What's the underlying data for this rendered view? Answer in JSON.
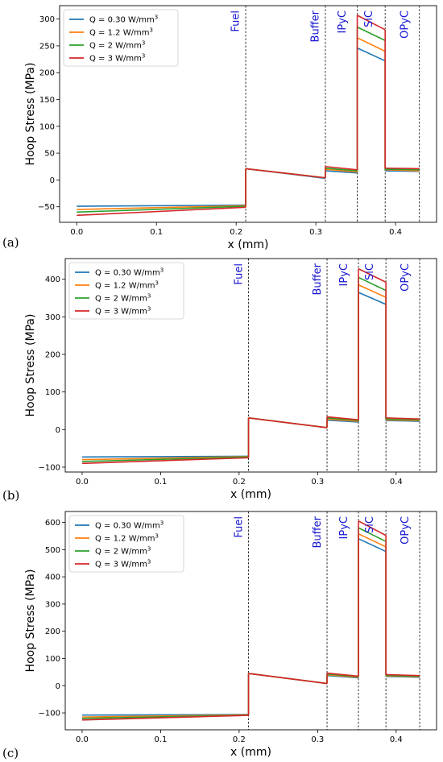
{
  "colors": {
    "series": [
      "#1f77b4",
      "#ff7f0e",
      "#2ca02c",
      "#d62728"
    ],
    "region_label": "#1414d2",
    "boundary": "#000000"
  },
  "chart_data": [
    {
      "panel": "(a)",
      "type": "line",
      "xlabel": "x (mm)",
      "ylabel": "Hoop Stress (MPa)",
      "xlim": [
        -0.0215,
        0.4515
      ],
      "ylim": [
        -79,
        325
      ],
      "xticks": [
        0.0,
        0.1,
        0.2,
        0.3,
        0.4
      ],
      "xtick_labels": [
        "0.0",
        "0.1",
        "0.2",
        "0.3",
        "0.4"
      ],
      "yticks": [
        -50,
        0,
        50,
        100,
        150,
        200,
        250,
        300
      ],
      "ytick_labels": [
        "−50",
        "0",
        "50",
        "100",
        "150",
        "200",
        "250",
        "300"
      ],
      "grid": false,
      "legend": {
        "position": "top-left",
        "entries": [
          {
            "prefix": "Q = 0.30 W/mm",
            "sup": "3"
          },
          {
            "prefix": "Q = 1.2 W/mm",
            "sup": "3"
          },
          {
            "prefix": "Q = 2 W/mm",
            "sup": "3"
          },
          {
            "prefix": "Q = 3 W/mm",
            "sup": "3"
          }
        ]
      },
      "boundaries": [
        0.212,
        0.312,
        0.352,
        0.387,
        0.43
      ],
      "regions": [
        {
          "label": "Fuel",
          "x": 0.2
        },
        {
          "label": "Buffer",
          "x": 0.3
        },
        {
          "label": "IPyC",
          "x": 0.334
        },
        {
          "label": "SiC",
          "x": 0.367
        },
        {
          "label": "OPyC",
          "x": 0.412
        }
      ],
      "series": [
        {
          "segments": [
            [
              [
                0,
                -49
              ],
              [
                0.212,
                -47
              ]
            ],
            [
              [
                0.212,
                21
              ],
              [
                0.312,
                3
              ]
            ],
            [
              [
                0.312,
                17
              ],
              [
                0.352,
                13
              ]
            ],
            [
              [
                0.352,
                246
              ],
              [
                0.387,
                222
              ]
            ],
            [
              [
                0.387,
                17
              ],
              [
                0.43,
                16
              ]
            ]
          ]
        },
        {
          "segments": [
            [
              [
                0,
                -55
              ],
              [
                0.212,
                -48
              ]
            ],
            [
              [
                0.212,
                21
              ],
              [
                0.312,
                4
              ]
            ],
            [
              [
                0.312,
                20
              ],
              [
                0.352,
                15
              ]
            ],
            [
              [
                0.352,
                265
              ],
              [
                0.387,
                240
              ]
            ],
            [
              [
                0.387,
                19
              ],
              [
                0.43,
                17
              ]
            ]
          ]
        },
        {
          "segments": [
            [
              [
                0,
                -60
              ],
              [
                0.212,
                -49
              ]
            ],
            [
              [
                0.212,
                21
              ],
              [
                0.312,
                4
              ]
            ],
            [
              [
                0.312,
                22
              ],
              [
                0.352,
                17
              ]
            ],
            [
              [
                0.352,
                285
              ],
              [
                0.387,
                260
              ]
            ],
            [
              [
                0.387,
                20
              ],
              [
                0.43,
                19
              ]
            ]
          ]
        },
        {
          "segments": [
            [
              [
                0,
                -66
              ],
              [
                0.212,
                -51
              ]
            ],
            [
              [
                0.212,
                21
              ],
              [
                0.312,
                4
              ]
            ],
            [
              [
                0.312,
                25
              ],
              [
                0.352,
                19
              ]
            ],
            [
              [
                0.352,
                307
              ],
              [
                0.387,
                280
              ]
            ],
            [
              [
                0.387,
                22
              ],
              [
                0.43,
                21
              ]
            ]
          ]
        }
      ]
    },
    {
      "panel": "(b)",
      "type": "line",
      "xlabel": "x (mm)",
      "ylabel": "Hoop Stress (MPa)",
      "xlim": [
        -0.0215,
        0.4515
      ],
      "ylim": [
        -113,
        455
      ],
      "xticks": [
        0.0,
        0.1,
        0.2,
        0.3,
        0.4
      ],
      "xtick_labels": [
        "0.0",
        "0.1",
        "0.2",
        "0.3",
        "0.4"
      ],
      "yticks": [
        -100,
        0,
        100,
        200,
        300,
        400
      ],
      "ytick_labels": [
        "−100",
        "0",
        "100",
        "200",
        "300",
        "400"
      ],
      "grid": false,
      "legend": {
        "position": "top-left",
        "entries": [
          {
            "prefix": "Q = 0.30 W/mm",
            "sup": "3"
          },
          {
            "prefix": "Q = 1.2 W/mm",
            "sup": "3"
          },
          {
            "prefix": "Q = 2 W/mm",
            "sup": "3"
          },
          {
            "prefix": "Q = 3 W/mm",
            "sup": "3"
          }
        ]
      },
      "boundaries": [
        0.212,
        0.312,
        0.352,
        0.387,
        0.43
      ],
      "regions": [
        {
          "label": "Fuel",
          "x": 0.2
        },
        {
          "label": "Buffer",
          "x": 0.3
        },
        {
          "label": "IPyC",
          "x": 0.334
        },
        {
          "label": "SiC",
          "x": 0.367
        },
        {
          "label": "OPyC",
          "x": 0.412
        }
      ],
      "series": [
        {
          "segments": [
            [
              [
                0,
                -73
              ],
              [
                0.212,
                -71
              ]
            ],
            [
              [
                0.212,
                31
              ],
              [
                0.312,
                5
              ]
            ],
            [
              [
                0.312,
                25
              ],
              [
                0.352,
                20
              ]
            ],
            [
              [
                0.352,
                365
              ],
              [
                0.387,
                333
              ]
            ],
            [
              [
                0.387,
                24
              ],
              [
                0.43,
                22
              ]
            ]
          ]
        },
        {
          "segments": [
            [
              [
                0,
                -80
              ],
              [
                0.212,
                -72
              ]
            ],
            [
              [
                0.212,
                31
              ],
              [
                0.312,
                5
              ]
            ],
            [
              [
                0.312,
                28
              ],
              [
                0.352,
                22
              ]
            ],
            [
              [
                0.352,
                385
              ],
              [
                0.387,
                352
              ]
            ],
            [
              [
                0.387,
                26
              ],
              [
                0.43,
                24
              ]
            ]
          ]
        },
        {
          "segments": [
            [
              [
                0,
                -85
              ],
              [
                0.212,
                -73
              ]
            ],
            [
              [
                0.212,
                31
              ],
              [
                0.312,
                5
              ]
            ],
            [
              [
                0.312,
                31
              ],
              [
                0.352,
                24
              ]
            ],
            [
              [
                0.352,
                405
              ],
              [
                0.387,
                370
              ]
            ],
            [
              [
                0.387,
                28
              ],
              [
                0.43,
                26
              ]
            ]
          ]
        },
        {
          "segments": [
            [
              [
                0,
                -90
              ],
              [
                0.212,
                -75
              ]
            ],
            [
              [
                0.212,
                31
              ],
              [
                0.312,
                5
              ]
            ],
            [
              [
                0.312,
                34
              ],
              [
                0.352,
                26
              ]
            ],
            [
              [
                0.352,
                428
              ],
              [
                0.387,
                392
              ]
            ],
            [
              [
                0.387,
                31
              ],
              [
                0.43,
                28
              ]
            ]
          ]
        }
      ]
    },
    {
      "panel": "(c)",
      "type": "line",
      "xlabel": "x (mm)",
      "ylabel": "Hoop Stress (MPa)",
      "xlim": [
        -0.0215,
        0.4515
      ],
      "ylim": [
        -162,
        640
      ],
      "xticks": [
        0.0,
        0.1,
        0.2,
        0.3,
        0.4
      ],
      "xtick_labels": [
        "0.0",
        "0.1",
        "0.2",
        "0.3",
        "0.4"
      ],
      "yticks": [
        -100,
        0,
        100,
        200,
        300,
        400,
        500,
        600
      ],
      "ytick_labels": [
        "−100",
        "0",
        "100",
        "200",
        "300",
        "400",
        "500",
        "600"
      ],
      "grid": false,
      "legend": {
        "position": "top-left",
        "entries": [
          {
            "prefix": "Q = 0.30 W/mm",
            "sup": "3"
          },
          {
            "prefix": "Q = 1.2 W/mm",
            "sup": "3"
          },
          {
            "prefix": "Q = 2 W/mm",
            "sup": "3"
          },
          {
            "prefix": "Q = 3 W/mm",
            "sup": "3"
          }
        ]
      },
      "boundaries": [
        0.212,
        0.312,
        0.352,
        0.387,
        0.43
      ],
      "regions": [
        {
          "label": "Fuel",
          "x": 0.2
        },
        {
          "label": "Buffer",
          "x": 0.3
        },
        {
          "label": "IPyC",
          "x": 0.334
        },
        {
          "label": "SiC",
          "x": 0.367
        },
        {
          "label": "OPyC",
          "x": 0.412
        }
      ],
      "series": [
        {
          "segments": [
            [
              [
                0,
                -108
              ],
              [
                0.212,
                -106
              ]
            ],
            [
              [
                0.212,
                45
              ],
              [
                0.312,
                8
              ]
            ],
            [
              [
                0.312,
                37
              ],
              [
                0.352,
                29
              ]
            ],
            [
              [
                0.352,
                540
              ],
              [
                0.387,
                493
              ]
            ],
            [
              [
                0.387,
                34
              ],
              [
                0.43,
                31
              ]
            ]
          ]
        },
        {
          "segments": [
            [
              [
                0,
                -115
              ],
              [
                0.212,
                -107
              ]
            ],
            [
              [
                0.212,
                45
              ],
              [
                0.312,
                8
              ]
            ],
            [
              [
                0.312,
                40
              ],
              [
                0.352,
                31
              ]
            ],
            [
              [
                0.352,
                558
              ],
              [
                0.387,
                510
              ]
            ],
            [
              [
                0.387,
                36
              ],
              [
                0.43,
                33
              ]
            ]
          ]
        },
        {
          "segments": [
            [
              [
                0,
                -120
              ],
              [
                0.212,
                -108
              ]
            ],
            [
              [
                0.212,
                45
              ],
              [
                0.312,
                8
              ]
            ],
            [
              [
                0.312,
                43
              ],
              [
                0.352,
                33
              ]
            ],
            [
              [
                0.352,
                580
              ],
              [
                0.387,
                530
              ]
            ],
            [
              [
                0.387,
                38
              ],
              [
                0.43,
                35
              ]
            ]
          ]
        },
        {
          "segments": [
            [
              [
                0,
                -126
              ],
              [
                0.212,
                -109
              ]
            ],
            [
              [
                0.212,
                45
              ],
              [
                0.312,
                8
              ]
            ],
            [
              [
                0.312,
                46
              ],
              [
                0.352,
                35
              ]
            ],
            [
              [
                0.352,
                605
              ],
              [
                0.387,
                552
              ]
            ],
            [
              [
                0.387,
                41
              ],
              [
                0.43,
                37
              ]
            ]
          ]
        }
      ]
    }
  ]
}
